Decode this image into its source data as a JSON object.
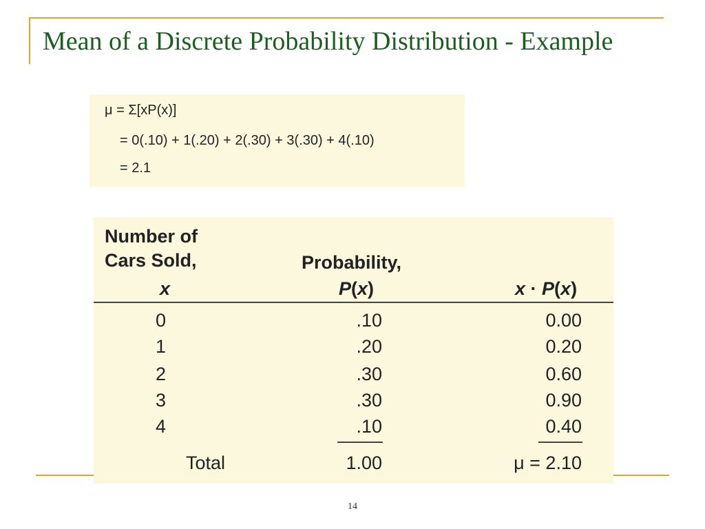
{
  "slide": {
    "title": "Mean of a Discrete Probability Distribution - Example",
    "page_number": "14"
  },
  "formula": {
    "line1": "μ = Σ[xP(x)]",
    "line2": "= 0(.10) + 1(.20) + 2(.30) + 3(.30) + 4(.10)",
    "line3": "= 2.1"
  },
  "table": {
    "headers": {
      "col1_line1": "Number of",
      "col1_line2": "Cars Sold,",
      "col1_line3": "x",
      "col2_line1": "Probability,",
      "col2_line2_p": "P",
      "col2_line2_x": "x",
      "col3_x": "x",
      "col3_p": "P",
      "col3_x2": "x"
    },
    "rows": [
      {
        "x": "0",
        "p": ".10",
        "xp": "0.00"
      },
      {
        "x": "1",
        "p": ".20",
        "xp": "0.20"
      },
      {
        "x": "2",
        "p": ".30",
        "xp": "0.60"
      },
      {
        "x": "3",
        "p": ".30",
        "xp": "0.90"
      },
      {
        "x": "4",
        "p": ".10",
        "xp": "0.40"
      }
    ],
    "total_label": "Total",
    "total_p": "1.00",
    "mu_label": "μ = 2.10"
  },
  "colors": {
    "accent_rule": "#d9a62e",
    "title_text": "#1b5e20",
    "panel_bg": "#fbf8dd"
  }
}
